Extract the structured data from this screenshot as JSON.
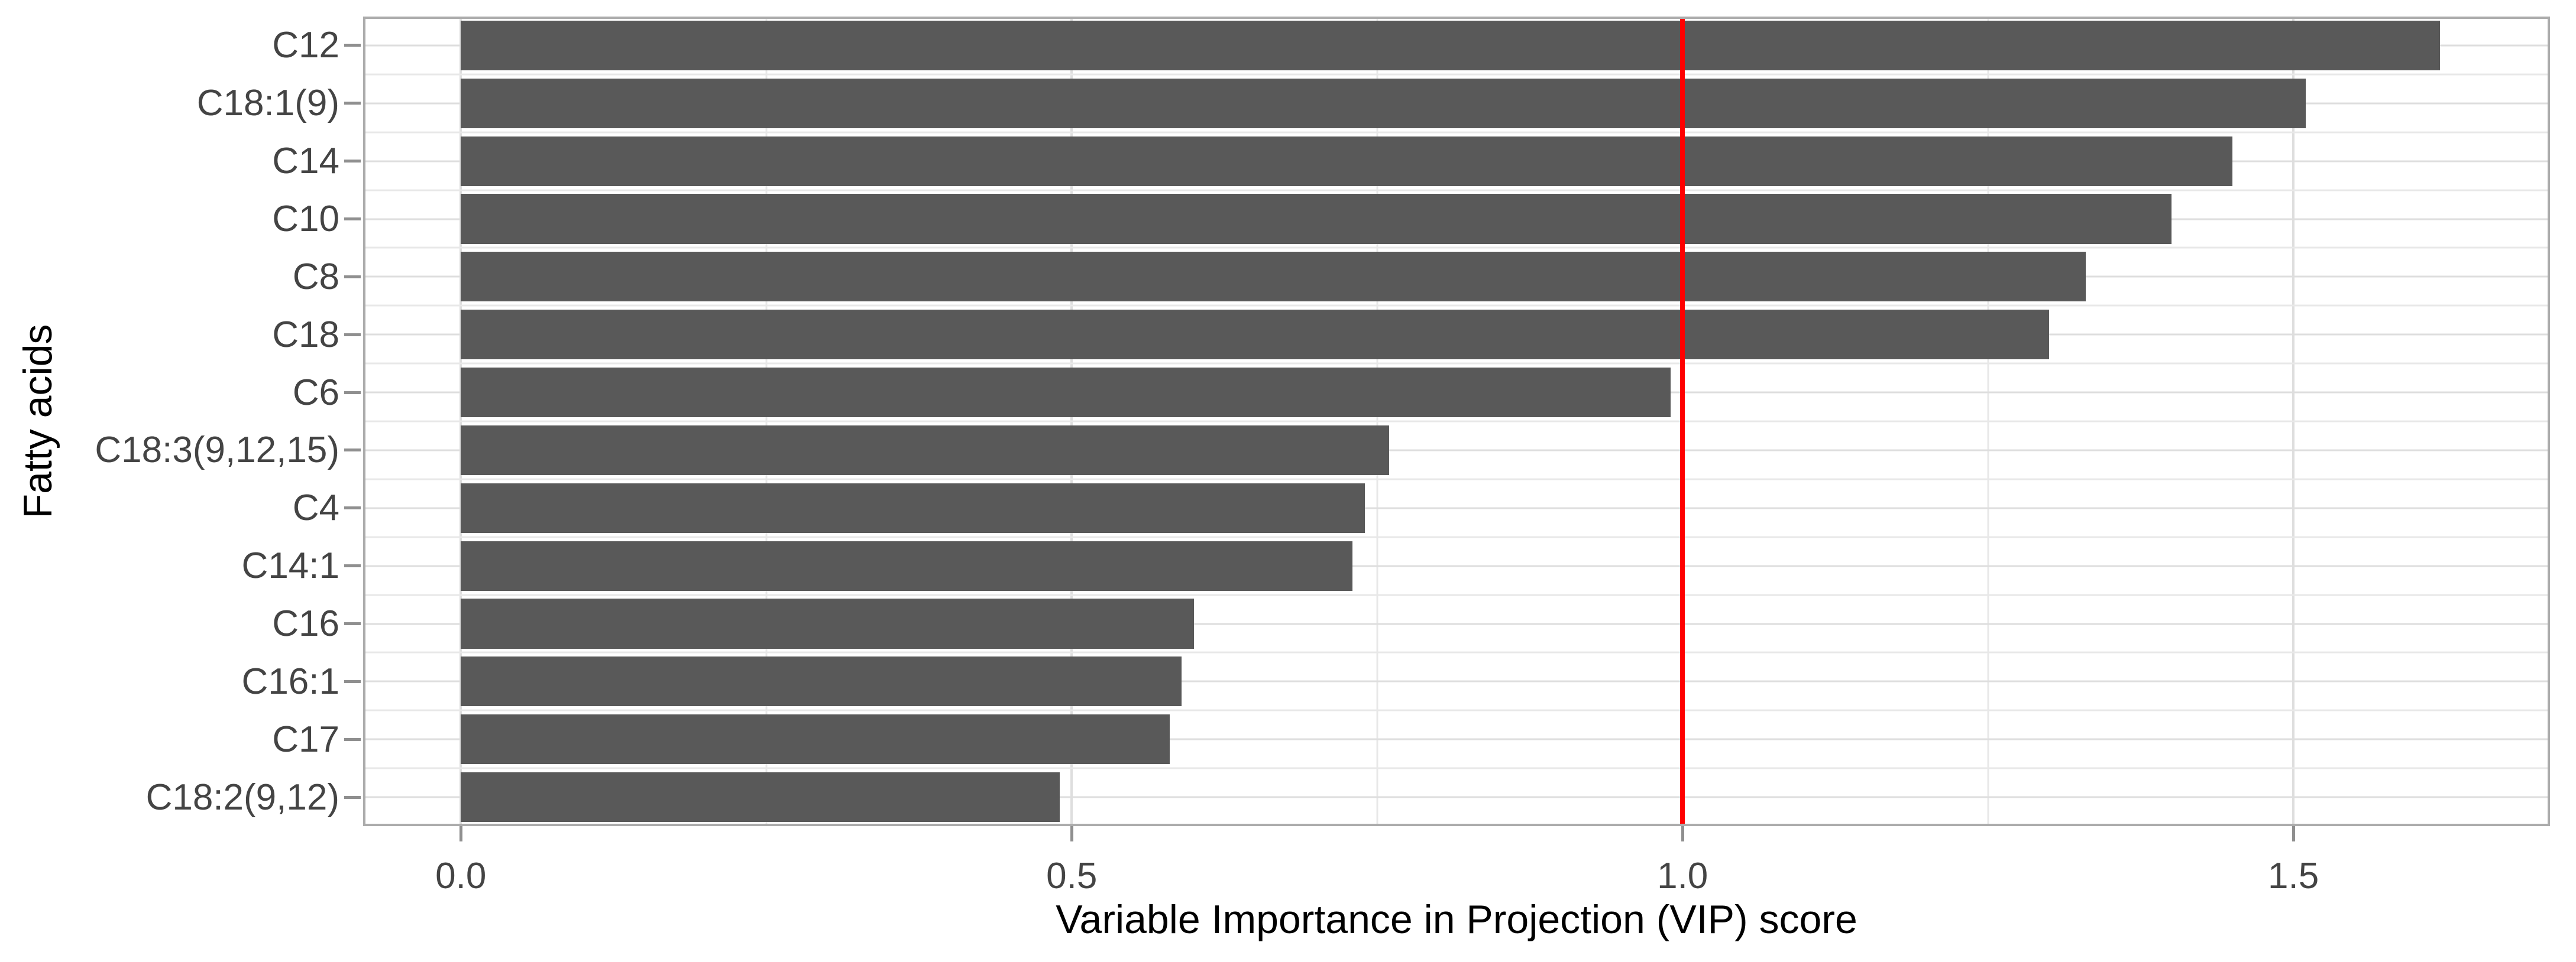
{
  "chart_data": {
    "type": "bar",
    "orientation": "horizontal",
    "title": "",
    "categories": [
      "C12",
      "C18:1(9)",
      "C14",
      "C10",
      "C8",
      "C18",
      "C6",
      "C18:3(9,12,15)",
      "C4",
      "C14:1",
      "C16",
      "C16:1",
      "C17",
      "C18:2(9,12)"
    ],
    "values": [
      1.62,
      1.51,
      1.45,
      1.4,
      1.33,
      1.3,
      0.99,
      0.76,
      0.74,
      0.73,
      0.6,
      0.59,
      0.58,
      0.49
    ],
    "xlabel": "Variable Importance in Projection (VIP) score",
    "ylabel": "Fatty acids",
    "xlim": [
      -0.08,
      1.71
    ],
    "x_major_ticks": [
      0,
      0.5,
      1.0,
      1.5
    ],
    "x_tick_labels": [
      "0.0",
      "0.5",
      "1.0",
      "1.5"
    ],
    "x_minor_ticks": [
      0.25,
      0.75,
      1.25
    ],
    "reference_line_x": 1.0,
    "grid": true,
    "legend": false
  },
  "colors": {
    "bar_fill": "#595959",
    "reference_line": "#ff0000",
    "panel_border": "#acacac",
    "grid_major": "#dedede",
    "grid_minor": "#e8e8e8",
    "tick_mark": "#8f8f8f",
    "axis_text": "#444444",
    "axis_title": "#000000",
    "background": "#ffffff"
  }
}
